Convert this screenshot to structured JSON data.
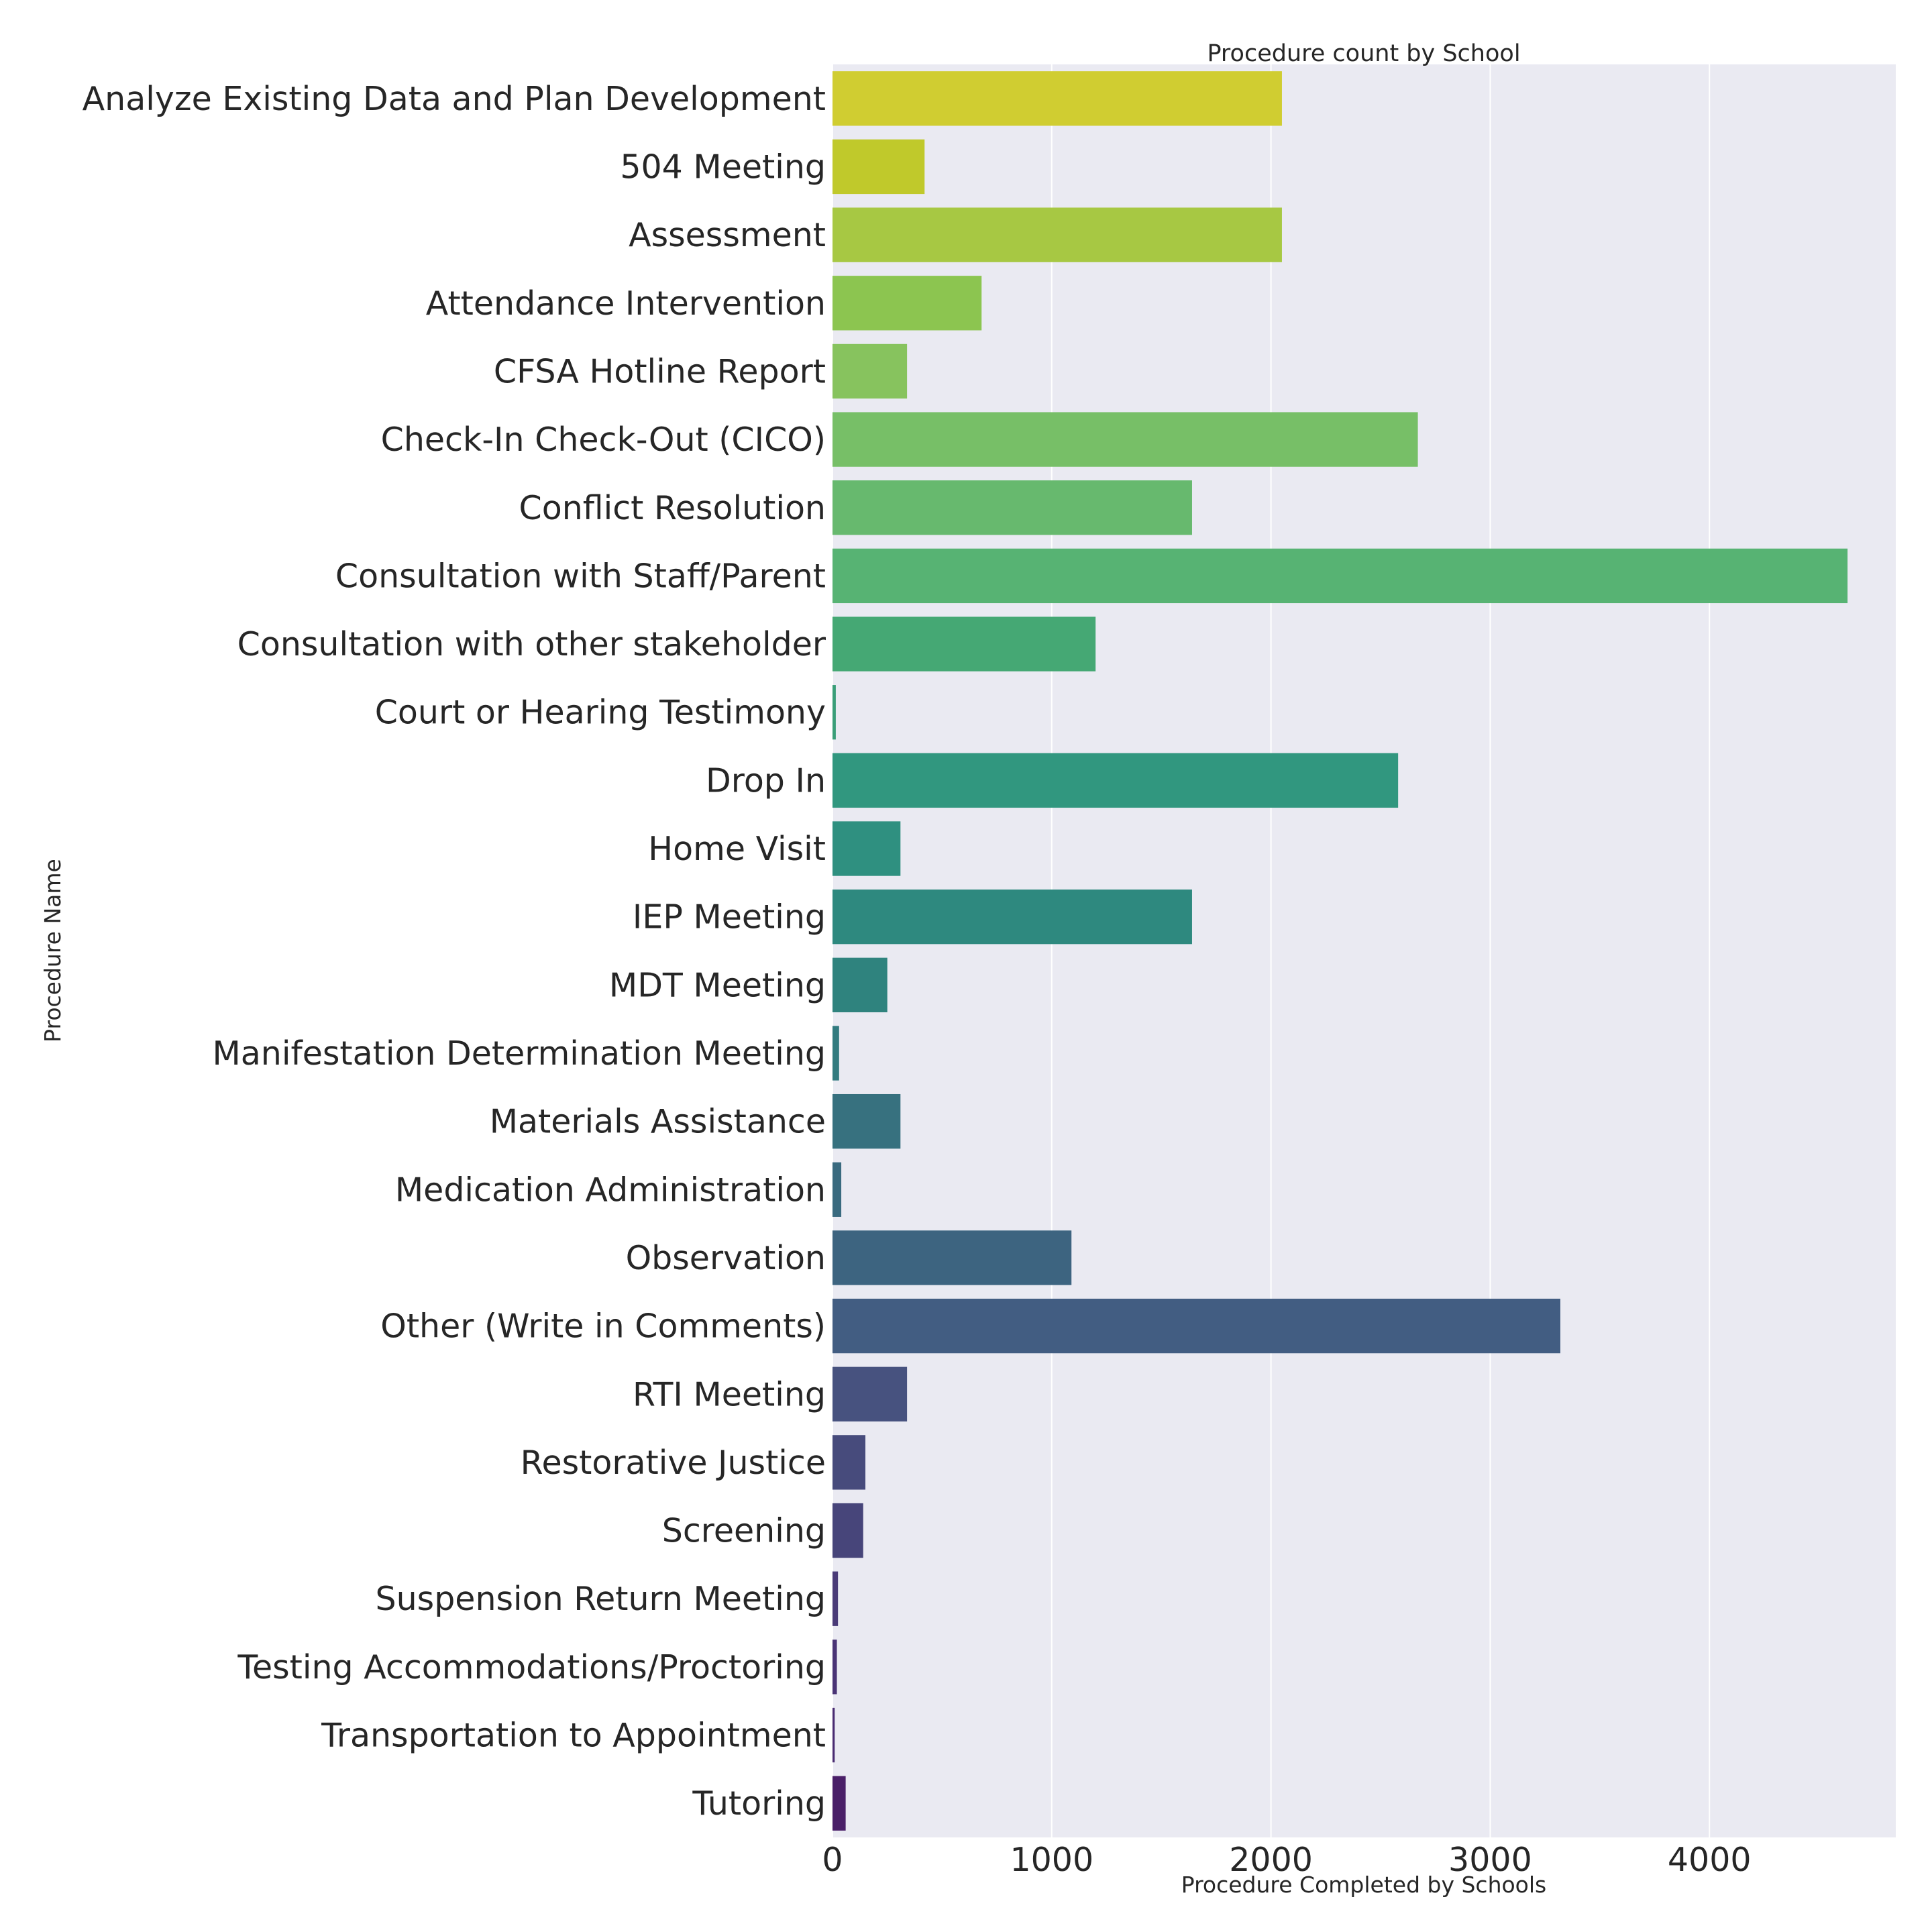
{
  "chart_data": {
    "type": "bar",
    "orientation": "horizontal",
    "title": "Procedure count by School",
    "xlabel": "Procedure Completed by Schools",
    "ylabel": "Procedure Name",
    "xlim": [
      0,
      4850
    ],
    "xticks": [
      0,
      1000,
      2000,
      3000,
      4000
    ],
    "grid": true,
    "categories": [
      "Analyze Existing Data and Plan Development",
      "504 Meeting",
      "Assessment",
      "Attendance Intervention",
      "CFSA Hotline Report",
      "Check-In Check-Out (CICO)",
      "Conflict Resolution",
      "Consultation with Staff/Parent",
      "Consultation with other stakeholder",
      "Court or Hearing Testimony",
      "Drop In",
      "Home Visit",
      "IEP Meeting",
      "MDT Meeting",
      "Manifestation Determination Meeting",
      "Materials Assistance",
      "Medication Administration",
      "Observation",
      "Other (Write in Comments)",
      "RTI Meeting",
      "Restorative Justice",
      "Screening",
      "Suspension Return Meeting",
      "Testing Accommodations/Proctoring",
      "Transportation to Appointment",
      "Tutoring"
    ],
    "values": [
      2050,
      420,
      2050,
      680,
      340,
      2670,
      1640,
      4630,
      1200,
      15,
      2580,
      310,
      1640,
      250,
      30,
      310,
      40,
      1090,
      3320,
      340,
      150,
      140,
      25,
      20,
      10,
      60
    ],
    "colors": [
      "#d0cd31",
      "#c0c92b",
      "#a7c843",
      "#8cc550",
      "#87c35e",
      "#77bf67",
      "#67b96e",
      "#57b373",
      "#45a874",
      "#3a9e78",
      "#31977f",
      "#2f9080",
      "#2e897f",
      "#2f837e",
      "#327b7f",
      "#37717f",
      "#396a7f",
      "#3d6480",
      "#425d82",
      "#47527f",
      "#474b7c",
      "#47457a",
      "#4a3b78",
      "#4a3476",
      "#4a2c72",
      "#4a1f68"
    ]
  }
}
